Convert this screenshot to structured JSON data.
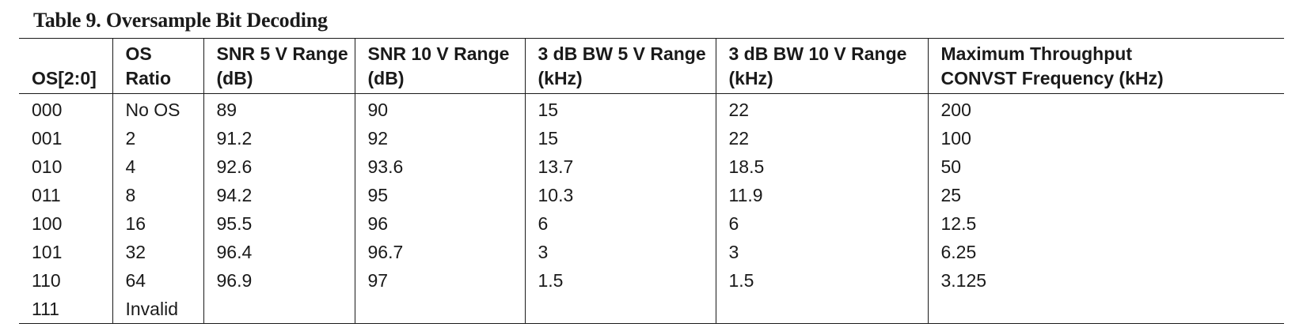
{
  "caption": "Table 9. Oversample Bit Decoding",
  "table": {
    "headers": [
      {
        "line1": "",
        "line2": "OS[2:0]"
      },
      {
        "line1": "OS",
        "line2": "Ratio"
      },
      {
        "line1": "SNR 5 V Range",
        "line2": "(dB)"
      },
      {
        "line1": "SNR 10 V Range",
        "line2": "(dB)"
      },
      {
        "line1": "3 dB BW 5 V Range",
        "line2": "(kHz)"
      },
      {
        "line1": "3 dB BW 10 V Range",
        "line2": "(kHz)"
      },
      {
        "line1": "Maximum Throughput",
        "line2": "CONVST Frequency (kHz)"
      }
    ],
    "rows": [
      [
        "000",
        "No OS",
        "89",
        "90",
        "15",
        "22",
        "200"
      ],
      [
        "001",
        "2",
        "91.2",
        "92",
        "15",
        "22",
        "100"
      ],
      [
        "010",
        "4",
        "92.6",
        "93.6",
        "13.7",
        "18.5",
        "50"
      ],
      [
        "011",
        "8",
        "94.2",
        "95",
        "10.3",
        "11.9",
        "25"
      ],
      [
        "100",
        "16",
        "95.5",
        "96",
        "6",
        "6",
        "12.5"
      ],
      [
        "101",
        "32",
        "96.4",
        "96.7",
        "3",
        "3",
        "6.25"
      ],
      [
        "110",
        "64",
        "96.9",
        "97",
        "1.5",
        "1.5",
        "3.125"
      ],
      [
        "111",
        "Invalid",
        "",
        "",
        "",
        "",
        ""
      ]
    ]
  }
}
